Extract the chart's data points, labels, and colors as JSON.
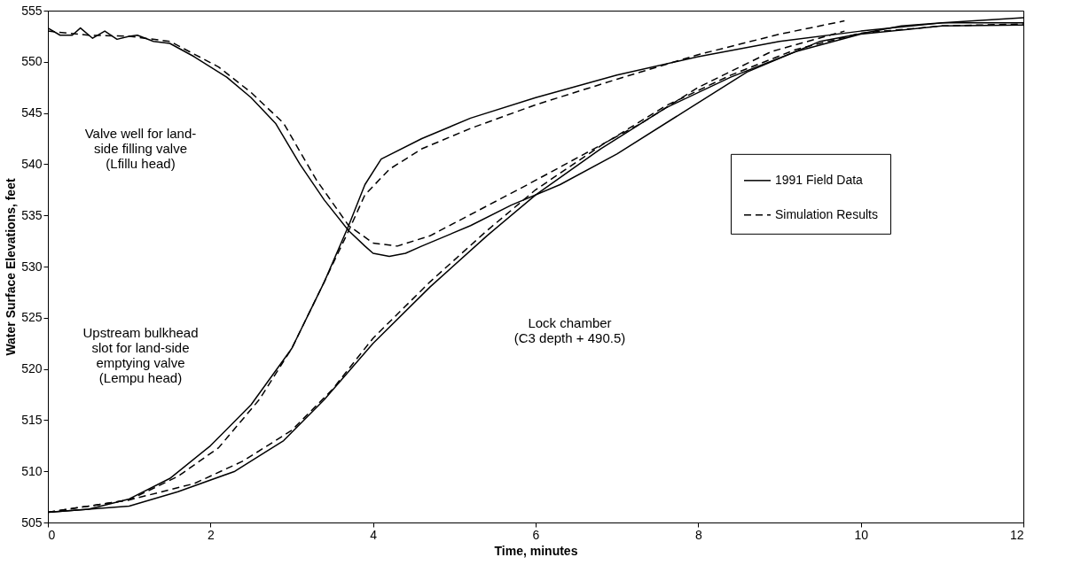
{
  "chart_data": {
    "type": "line",
    "xlabel": "Time, minutes",
    "ylabel": "Water Surface Elevations, feet",
    "xlim": [
      0,
      12
    ],
    "xticks": [
      0,
      2,
      4,
      6,
      8,
      10,
      12
    ],
    "ylim": [
      505,
      555
    ],
    "yticks": [
      505,
      510,
      515,
      520,
      525,
      530,
      535,
      540,
      545,
      550,
      555
    ],
    "grid": false,
    "legend": "right",
    "marker": "none",
    "series": [
      {
        "name": "1991 Field Data",
        "color": "#000000",
        "line_style": "solid",
        "x": [
          0,
          0.15,
          0.3,
          0.4,
          0.55,
          0.7,
          0.85,
          1.0,
          1.1,
          1.3,
          1.5,
          1.8,
          2.2,
          2.5,
          2.8,
          3.1,
          3.4,
          3.7,
          3.9,
          4.0,
          4.2,
          4.4,
          4.6,
          5.2,
          5.7,
          6.3,
          7.0,
          7.8,
          8.6,
          9.5,
          10.5,
          11,
          12
        ],
        "values": [
          553.3,
          552.6,
          552.6,
          553.3,
          552.3,
          553.0,
          552.2,
          552.5,
          552.6,
          552.0,
          551.8,
          550.5,
          548.5,
          546.5,
          544,
          540,
          536.5,
          533.5,
          532.0,
          531.3,
          531,
          531.3,
          532,
          534,
          536,
          538,
          541,
          545,
          549,
          552,
          553.5,
          553.8,
          553.8
        ]
      },
      {
        "color": "#000000",
        "line_style": "solid",
        "x": [
          0,
          0.5,
          1,
          1.5,
          2,
          2.5,
          3,
          3.4,
          3.7,
          3.9,
          4.1,
          4.6,
          5.2,
          6,
          7,
          8,
          9,
          10,
          11,
          12
        ],
        "values": [
          506,
          506.3,
          507.3,
          509.3,
          512.5,
          516.5,
          522,
          528.5,
          534,
          538,
          540.5,
          542.5,
          544.5,
          546.5,
          548.7,
          550.5,
          552,
          553,
          553.8,
          554.3
        ]
      },
      {
        "color": "#000000",
        "line_style": "solid",
        "x": [
          0,
          1,
          1.6,
          2.3,
          2.9,
          3.4,
          4,
          4.7,
          5.4,
          6,
          6.8,
          7.6,
          8.4,
          9.2,
          10,
          11,
          12
        ],
        "values": [
          506,
          506.6,
          508,
          510,
          513,
          517,
          522.5,
          528,
          533,
          537,
          541.5,
          545.5,
          548.5,
          551,
          552.7,
          553.5,
          553.6
        ]
      },
      {
        "name": "Simulation Results",
        "color": "#000000",
        "line_style": "dashed",
        "x": [
          0,
          0.5,
          1,
          1.5,
          2.1,
          2.5,
          2.9,
          3.3,
          3.7,
          4,
          4.3,
          4.7,
          5.3,
          5.9,
          6.6,
          7.3,
          8,
          8.9,
          9.8
        ],
        "values": [
          553,
          552.6,
          552.5,
          552,
          549.5,
          547,
          544,
          538.5,
          534,
          532.3,
          532,
          533,
          535.5,
          538,
          541,
          544,
          547.5,
          551,
          553
        ]
      },
      {
        "color": "#000000",
        "line_style": "dashed",
        "x": [
          0,
          1,
          1.6,
          2.1,
          2.6,
          3,
          3.4,
          3.7,
          3.9,
          4.2,
          4.6,
          5.2,
          6,
          7,
          8,
          9,
          9.8
        ],
        "values": [
          506,
          507.2,
          509.5,
          512.3,
          517,
          522,
          528.5,
          533.5,
          537,
          539.5,
          541.5,
          543.5,
          545.8,
          548.3,
          550.7,
          552.7,
          554
        ]
      },
      {
        "color": "#000000",
        "line_style": "dashed",
        "x": [
          0,
          1,
          1.8,
          2.4,
          3,
          3.5,
          4,
          4.7,
          5.4,
          6,
          6.8,
          7.6,
          8.4,
          9.2,
          10,
          11,
          12
        ],
        "values": [
          506,
          507.2,
          508.8,
          511,
          514,
          518,
          523,
          528.5,
          533.5,
          537.5,
          541.8,
          545.7,
          548.7,
          551.2,
          552.8,
          553.5,
          553.7
        ]
      }
    ],
    "annotations": [
      "Valve well for land-\nside filling valve\n(Lfillu head)",
      "Upstream bulkhead\nslot for land-side\nemptying valve\n(Lempu head)",
      "Lock chamber\n(C3 depth + 490.5)"
    ]
  }
}
